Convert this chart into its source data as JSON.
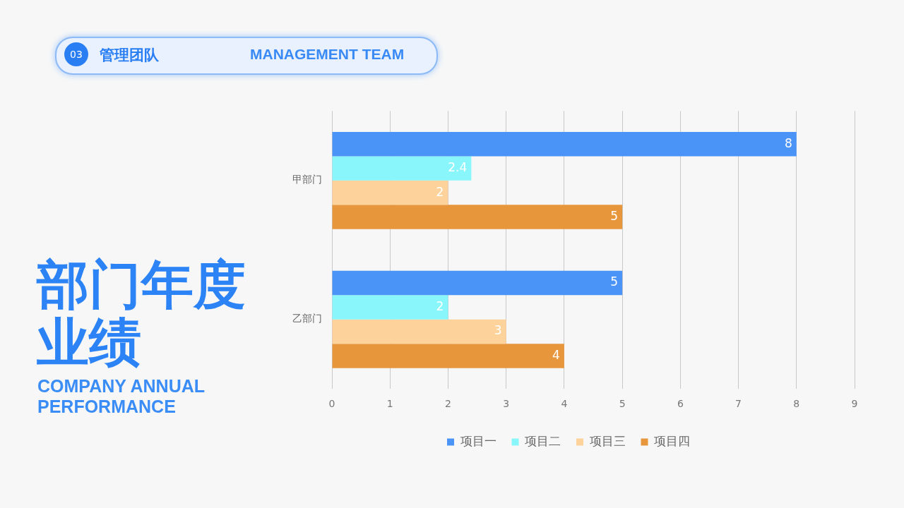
{
  "chart_data": {
    "type": "bar",
    "orientation": "horizontal",
    "title": "部门年度业绩",
    "subtitle": "COMPANY ANNUAL PERFORMANCE",
    "annotations": [
      "03",
      "管理团队",
      "MANAGEMENT TEAM"
    ],
    "categories": [
      "甲部门",
      "乙部门"
    ],
    "series": [
      {
        "name": "项目一",
        "color": "#4a94f8",
        "values": [
          8,
          5
        ]
      },
      {
        "name": "项目二",
        "color": "#88f6fb",
        "values": [
          2.4,
          2
        ]
      },
      {
        "name": "项目三",
        "color": "#fdd29b",
        "values": [
          2,
          3
        ]
      },
      {
        "name": "项目四",
        "color": "#e8963c",
        "values": [
          5,
          4
        ]
      }
    ],
    "xlim": [
      0,
      9
    ],
    "xticks": [
      0,
      1,
      2,
      3,
      4,
      5,
      6,
      7,
      8,
      9
    ],
    "grid": "x",
    "legend": "bottom",
    "data_labels": true
  }
}
